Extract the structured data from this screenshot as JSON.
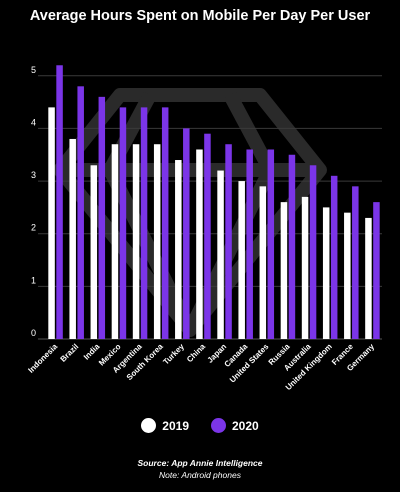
{
  "chart_data": {
    "type": "bar",
    "title": "Average Hours Spent on Mobile Per Day Per User",
    "categories": [
      "Indonesia",
      "Brazil",
      "India",
      "Mexico",
      "Argentina",
      "South Korea",
      "Turkey",
      "China",
      "Japan",
      "Canada",
      "United States",
      "Russia",
      "Australia",
      "United Kingdom",
      "France",
      "Germany"
    ],
    "series": [
      {
        "name": "2019",
        "color": "#ffffff",
        "values": [
          4.4,
          3.8,
          3.3,
          3.7,
          3.7,
          3.7,
          3.4,
          3.6,
          3.2,
          3.0,
          2.9,
          2.6,
          2.7,
          2.5,
          2.4,
          2.3
        ]
      },
      {
        "name": "2020",
        "color": "#7b35e8",
        "values": [
          5.2,
          4.8,
          4.6,
          4.4,
          4.4,
          4.4,
          4.0,
          3.9,
          3.7,
          3.6,
          3.6,
          3.5,
          3.3,
          3.1,
          2.9,
          2.6
        ]
      }
    ],
    "yticks": [
      "0",
      "1",
      "2",
      "3",
      "4",
      "5"
    ],
    "ylim": [
      0,
      5.3
    ],
    "grid": true,
    "legend_position": "bottom"
  },
  "source": "Source: App Annie Intelligence",
  "note": "Note: Android phones"
}
